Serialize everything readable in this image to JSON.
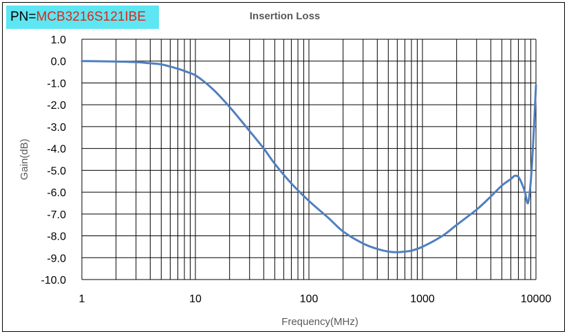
{
  "header": {
    "pn_prefix": "PN=",
    "pn_value": "MCB3216S121IBE"
  },
  "colors": {
    "pn_background": "#5ee6f2",
    "pn_value_text": "#d42a1e",
    "series_line": "#4f7fc0",
    "grid": "#000000"
  },
  "chart_data": {
    "type": "line",
    "title": "Insertion Loss",
    "xlabel": "Frequency(MHz)",
    "ylabel": "Gain(dB)",
    "xscale": "log",
    "xlim": [
      1,
      10000
    ],
    "ylim": [
      -10,
      1
    ],
    "x_ticks": [
      1,
      10,
      100,
      1000,
      10000
    ],
    "x_tick_labels": [
      "1",
      "10",
      "100",
      "1000",
      "10000"
    ],
    "y_ticks": [
      1,
      0,
      -1,
      -2,
      -3,
      -4,
      -5,
      -6,
      -7,
      -8,
      -9,
      -10
    ],
    "y_tick_labels": [
      "1.0",
      "0.0",
      "-1.0",
      "-2.0",
      "-3.0",
      "-4.0",
      "-5.0",
      "-6.0",
      "-7.0",
      "-8.0",
      "-9.0",
      "-10.0"
    ],
    "grid": true,
    "legend": "none",
    "series": [
      {
        "x": [
          1,
          2,
          3,
          4,
          5,
          6,
          7,
          8,
          9,
          10,
          12,
          15,
          20,
          25,
          30,
          40,
          50,
          70,
          100,
          150,
          200,
          300,
          400,
          500,
          600,
          700,
          800,
          1000,
          1500,
          2000,
          3000,
          4000,
          5000,
          6000,
          6500,
          7000,
          7500,
          8000,
          8500,
          9000,
          9500,
          10000
        ],
        "y": [
          0.0,
          -0.02,
          -0.05,
          -0.1,
          -0.15,
          -0.25,
          -0.35,
          -0.45,
          -0.55,
          -0.65,
          -0.95,
          -1.4,
          -2.1,
          -2.7,
          -3.2,
          -4.0,
          -4.7,
          -5.6,
          -6.4,
          -7.2,
          -7.8,
          -8.35,
          -8.6,
          -8.72,
          -8.75,
          -8.72,
          -8.68,
          -8.5,
          -8.0,
          -7.5,
          -6.8,
          -6.2,
          -5.7,
          -5.4,
          -5.25,
          -5.3,
          -5.6,
          -6.0,
          -6.5,
          -5.5,
          -3.5,
          -1.1
        ]
      }
    ]
  }
}
